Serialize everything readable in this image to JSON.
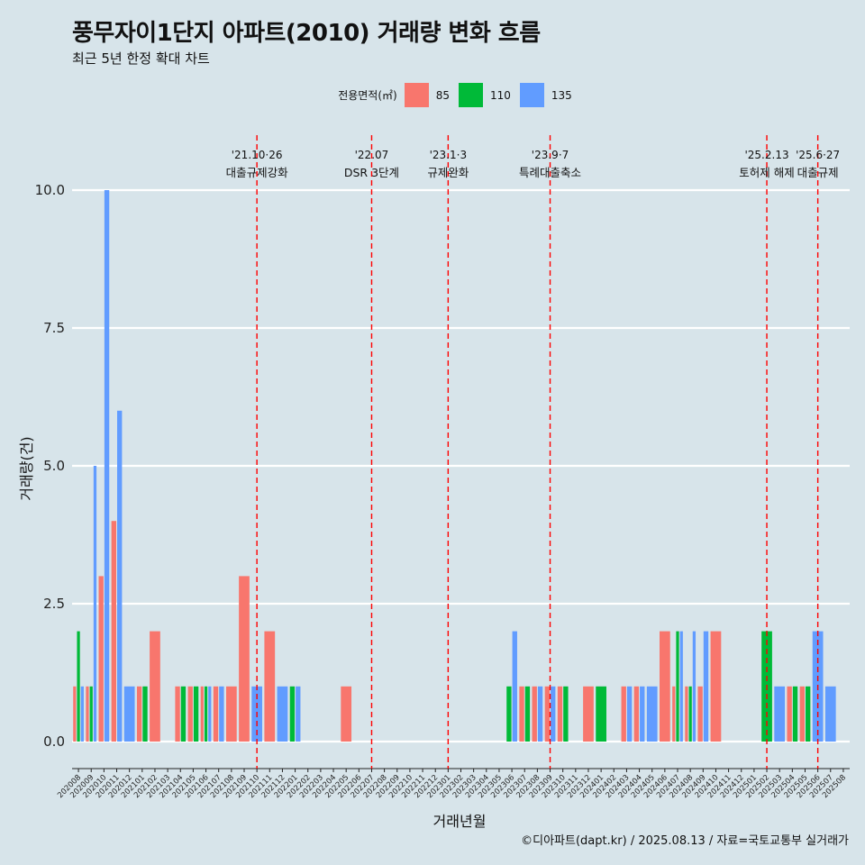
{
  "chart_data": {
    "type": "bar",
    "title": "풍무자이1단지 아파트(2010) 거래량 변화 흐름",
    "subtitle": "최근 5년 한정 확대 차트",
    "xlabel": "거래년월",
    "ylabel": "거래량(건)",
    "caption": "©디아파트(dapt.kr) / 2025.08.13 / 자료=국토교통부 실거래가",
    "legend_title": "전용면적(㎡)",
    "legend_position": "top",
    "ylim": [
      -0.45,
      11.6
    ],
    "yticks": [
      "0.0",
      "2.5",
      "5.0",
      "7.5",
      "10.0"
    ],
    "ytick_values": [
      0,
      2.5,
      5,
      7.5,
      10
    ],
    "grid": "horizontal",
    "categories": [
      "202008",
      "202009",
      "202010",
      "202011",
      "202012",
      "202101",
      "202102",
      "202103",
      "202104",
      "202105",
      "202106",
      "202107",
      "202108",
      "202109",
      "202110",
      "202111",
      "202112",
      "202201",
      "202202",
      "202203",
      "202204",
      "202205",
      "202206",
      "202207",
      "202208",
      "202209",
      "202210",
      "202211",
      "202212",
      "202301",
      "202302",
      "202303",
      "202304",
      "202305",
      "202306",
      "202307",
      "202308",
      "202309",
      "202310",
      "202311",
      "202312",
      "202401",
      "202402",
      "202403",
      "202404",
      "202405",
      "202406",
      "202407",
      "202408",
      "202409",
      "202410",
      "202411",
      "202412",
      "202501",
      "202502",
      "202503",
      "202504",
      "202505",
      "202506",
      "202507",
      "202508"
    ],
    "series": [
      {
        "name": "85",
        "color": "#f8766d",
        "values": [
          1,
          1,
          3,
          4,
          0,
          1,
          2,
          0,
          1,
          1,
          1,
          1,
          1,
          3,
          0,
          2,
          0,
          0,
          0,
          0,
          0,
          1,
          0,
          0,
          0,
          0,
          0,
          0,
          0,
          0,
          0,
          0,
          0,
          0,
          0,
          1,
          1,
          1,
          1,
          0,
          1,
          0,
          0,
          1,
          1,
          0,
          2,
          1,
          1,
          1,
          2,
          0,
          0,
          0,
          0,
          0,
          1,
          1,
          0,
          0,
          0
        ]
      },
      {
        "name": "110",
        "color": "#00ba38",
        "values": [
          2,
          1,
          0,
          0,
          0,
          1,
          0,
          0,
          1,
          1,
          1,
          0,
          0,
          0,
          0,
          0,
          0,
          1,
          0,
          0,
          0,
          0,
          0,
          0,
          0,
          0,
          0,
          0,
          0,
          0,
          0,
          0,
          0,
          0,
          1,
          1,
          0,
          0,
          1,
          0,
          0,
          1,
          0,
          0,
          0,
          0,
          0,
          2,
          1,
          0,
          0,
          0,
          0,
          0,
          2,
          0,
          1,
          1,
          0,
          0,
          0
        ]
      },
      {
        "name": "135",
        "color": "#619cff",
        "values": [
          1,
          5,
          10,
          6,
          1,
          0,
          0,
          0,
          0,
          0,
          1,
          1,
          0,
          0,
          1,
          0,
          1,
          1,
          0,
          0,
          0,
          0,
          0,
          0,
          0,
          0,
          0,
          0,
          0,
          0,
          0,
          0,
          0,
          0,
          2,
          0,
          1,
          1,
          0,
          0,
          0,
          0,
          0,
          1,
          1,
          1,
          0,
          2,
          2,
          2,
          0,
          0,
          0,
          0,
          0,
          1,
          0,
          0,
          2,
          1,
          0
        ]
      }
    ],
    "events": [
      {
        "date": "202110",
        "line1": "'21.10·26",
        "line2": "대출규제강화"
      },
      {
        "date": "202207",
        "line1": "'22.07",
        "line2": "DSR 3단계"
      },
      {
        "date": "202301",
        "line1": "'23.1·3",
        "line2": "규제완화"
      },
      {
        "date": "202309",
        "line1": "'23.9·7",
        "line2": "특례대출축소"
      },
      {
        "date": "202502",
        "line1": "'25.2.13",
        "line2": "토허제 해제"
      },
      {
        "date": "202506",
        "line1": "'25.6·27",
        "line2": "대출규제"
      }
    ]
  }
}
